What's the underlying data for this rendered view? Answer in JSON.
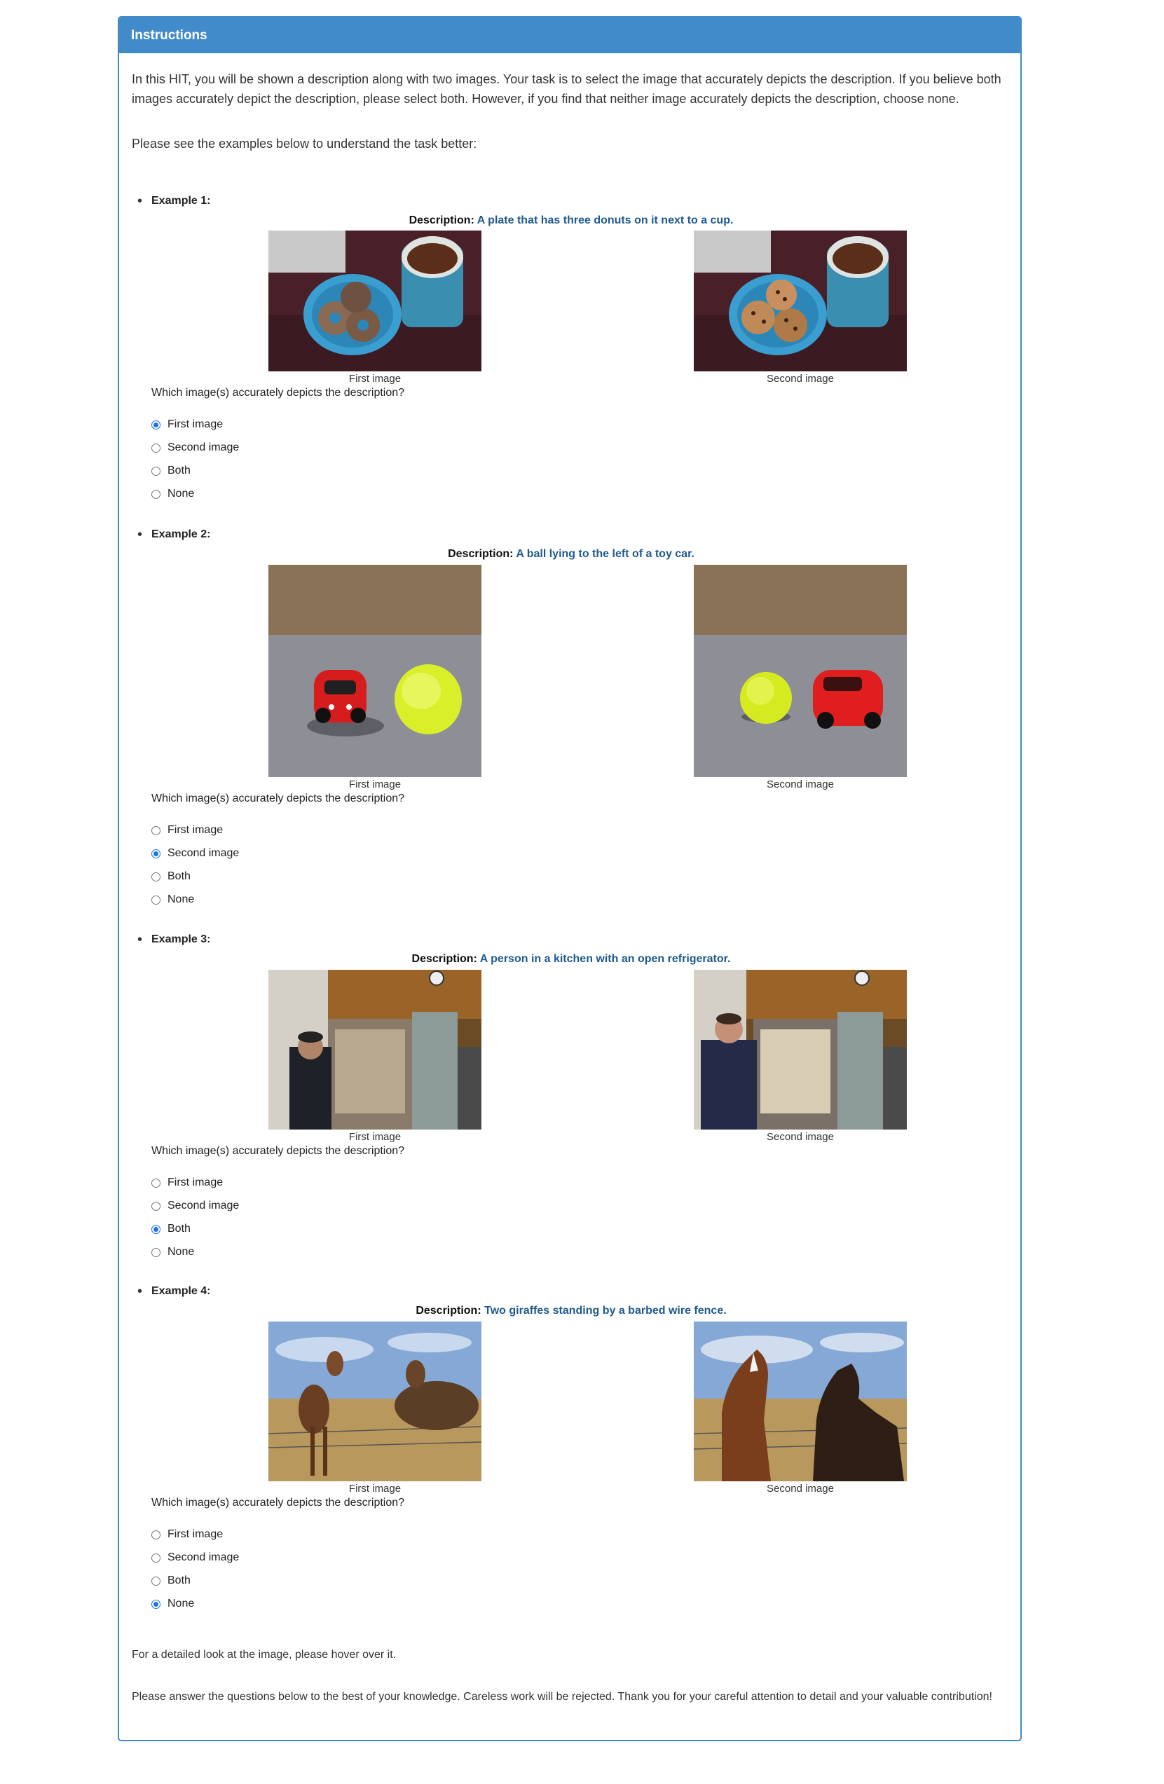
{
  "panel": {
    "heading": "Instructions",
    "intro": "In this HIT, you will be shown a description along with two images. Your task is to select the image that accurately depicts the description. If you believe both images accurately depict the description, please select both. However, if you find that neither image accurately depicts the description, choose none.",
    "examples_prompt": "Please see the examples below to understand the task better:",
    "desc_label": "Description:",
    "question": "Which image(s) accurately depicts the description?",
    "caption_first": "First image",
    "caption_second": "Second image",
    "options": [
      "First image",
      "Second image",
      "Both",
      "None"
    ],
    "examples": [
      {
        "title": "Example 1:",
        "description": "A plate that has three donuts on it next to a cup.",
        "selected": 0
      },
      {
        "title": "Example 2:",
        "description": "A ball lying to the left of a toy car.",
        "selected": 1
      },
      {
        "title": "Example 3:",
        "description": "A person in a kitchen with an open refrigerator.",
        "selected": 2
      },
      {
        "title": "Example 4:",
        "description": "Two giraffes standing by a barbed wire fence.",
        "selected": 3
      }
    ],
    "hover_note": "For a detailed look at the image, please hover over it.",
    "closing": "Please answer the questions below to the best of your knowledge. Careless work will be rejected. Thank you for your careful attention to detail and your valuable contribution!"
  },
  "colors": {
    "accent": "#428bca",
    "description_text": "#1f5a8e",
    "radio_checked": "#1a73e8"
  }
}
